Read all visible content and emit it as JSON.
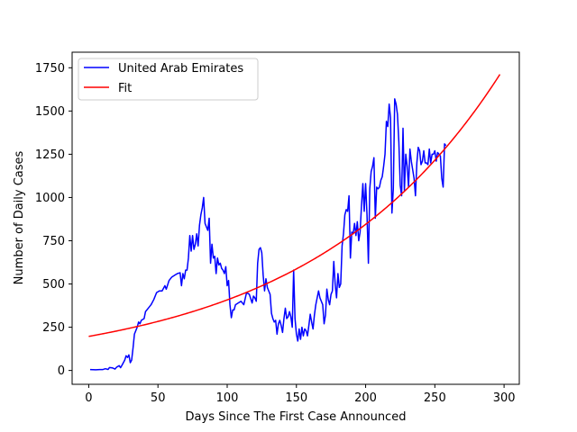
{
  "chart_data": {
    "type": "line",
    "xlabel": "Days Since The First Case Announced",
    "ylabel": "Number of Daily Cases",
    "xlim": [
      -12,
      311
    ],
    "ylim": [
      -80,
      1840
    ],
    "xticks": [
      0,
      50,
      100,
      150,
      200,
      250,
      300
    ],
    "yticks": [
      0,
      250,
      500,
      750,
      1000,
      1250,
      1500,
      1750
    ],
    "grid": false,
    "legend_position": "top-left",
    "series": [
      {
        "name": "United Arab Emirates",
        "color": "#0000ff",
        "points": [
          [
            1,
            5
          ],
          [
            5,
            4
          ],
          [
            8,
            5
          ],
          [
            10,
            5
          ],
          [
            12,
            10
          ],
          [
            14,
            6
          ],
          [
            15,
            17
          ],
          [
            17,
            15
          ],
          [
            19,
            8
          ],
          [
            20,
            18
          ],
          [
            22,
            28
          ],
          [
            23,
            16
          ],
          [
            24,
            30
          ],
          [
            26,
            60
          ],
          [
            27,
            85
          ],
          [
            28,
            75
          ],
          [
            29,
            90
          ],
          [
            30,
            45
          ],
          [
            31,
            60
          ],
          [
            32,
            130
          ],
          [
            33,
            210
          ],
          [
            35,
            250
          ],
          [
            36,
            280
          ],
          [
            37,
            270
          ],
          [
            38,
            290
          ],
          [
            40,
            300
          ],
          [
            41,
            340
          ],
          [
            43,
            360
          ],
          [
            45,
            380
          ],
          [
            47,
            410
          ],
          [
            49,
            450
          ],
          [
            51,
            460
          ],
          [
            53,
            460
          ],
          [
            55,
            490
          ],
          [
            56,
            470
          ],
          [
            58,
            520
          ],
          [
            60,
            540
          ],
          [
            62,
            550
          ],
          [
            64,
            560
          ],
          [
            66,
            565
          ],
          [
            67,
            490
          ],
          [
            68,
            560
          ],
          [
            69,
            530
          ],
          [
            70,
            580
          ],
          [
            71,
            580
          ],
          [
            72,
            650
          ],
          [
            73,
            780
          ],
          [
            74,
            690
          ],
          [
            75,
            780
          ],
          [
            76,
            700
          ],
          [
            77,
            730
          ],
          [
            78,
            790
          ],
          [
            79,
            720
          ],
          [
            80,
            840
          ],
          [
            81,
            900
          ],
          [
            82,
            940
          ],
          [
            83,
            1000
          ],
          [
            84,
            850
          ],
          [
            85,
            830
          ],
          [
            86,
            810
          ],
          [
            87,
            880
          ],
          [
            88,
            620
          ],
          [
            89,
            730
          ],
          [
            90,
            650
          ],
          [
            91,
            660
          ],
          [
            92,
            560
          ],
          [
            93,
            650
          ],
          [
            94,
            610
          ],
          [
            95,
            620
          ],
          [
            96,
            590
          ],
          [
            97,
            580
          ],
          [
            98,
            560
          ],
          [
            99,
            600
          ],
          [
            100,
            490
          ],
          [
            101,
            520
          ],
          [
            102,
            380
          ],
          [
            103,
            305
          ],
          [
            104,
            350
          ],
          [
            105,
            350
          ],
          [
            106,
            380
          ],
          [
            108,
            390
          ],
          [
            110,
            400
          ],
          [
            112,
            380
          ],
          [
            114,
            450
          ],
          [
            116,
            440
          ],
          [
            118,
            390
          ],
          [
            119,
            430
          ],
          [
            120,
            420
          ],
          [
            121,
            400
          ],
          [
            122,
            620
          ],
          [
            123,
            700
          ],
          [
            124,
            710
          ],
          [
            125,
            680
          ],
          [
            126,
            550
          ],
          [
            127,
            460
          ],
          [
            128,
            530
          ],
          [
            129,
            480
          ],
          [
            130,
            460
          ],
          [
            131,
            440
          ],
          [
            132,
            330
          ],
          [
            133,
            300
          ],
          [
            134,
            280
          ],
          [
            135,
            290
          ],
          [
            136,
            210
          ],
          [
            137,
            270
          ],
          [
            138,
            290
          ],
          [
            139,
            260
          ],
          [
            140,
            220
          ],
          [
            141,
            300
          ],
          [
            142,
            360
          ],
          [
            143,
            300
          ],
          [
            144,
            310
          ],
          [
            145,
            340
          ],
          [
            146,
            310
          ],
          [
            147,
            250
          ],
          [
            148,
            580
          ],
          [
            149,
            300
          ],
          [
            150,
            210
          ],
          [
            151,
            170
          ],
          [
            152,
            240
          ],
          [
            153,
            180
          ],
          [
            154,
            250
          ],
          [
            155,
            200
          ],
          [
            156,
            240
          ],
          [
            157,
            230
          ],
          [
            158,
            200
          ],
          [
            159,
            260
          ],
          [
            160,
            325
          ],
          [
            161,
            280
          ],
          [
            162,
            240
          ],
          [
            163,
            320
          ],
          [
            164,
            380
          ],
          [
            165,
            420
          ],
          [
            166,
            460
          ],
          [
            167,
            420
          ],
          [
            168,
            400
          ],
          [
            169,
            380
          ],
          [
            170,
            270
          ],
          [
            171,
            320
          ],
          [
            172,
            470
          ],
          [
            173,
            410
          ],
          [
            174,
            380
          ],
          [
            175,
            440
          ],
          [
            176,
            460
          ],
          [
            177,
            630
          ],
          [
            178,
            500
          ],
          [
            179,
            420
          ],
          [
            180,
            560
          ],
          [
            181,
            480
          ],
          [
            182,
            500
          ],
          [
            183,
            720
          ],
          [
            184,
            790
          ],
          [
            185,
            900
          ],
          [
            186,
            930
          ],
          [
            187,
            920
          ],
          [
            188,
            1010
          ],
          [
            189,
            650
          ],
          [
            190,
            800
          ],
          [
            191,
            790
          ],
          [
            192,
            850
          ],
          [
            193,
            780
          ],
          [
            194,
            860
          ],
          [
            195,
            750
          ],
          [
            196,
            800
          ],
          [
            197,
            950
          ],
          [
            198,
            1080
          ],
          [
            199,
            920
          ],
          [
            200,
            1080
          ],
          [
            201,
            900
          ],
          [
            202,
            620
          ],
          [
            203,
            1050
          ],
          [
            204,
            1150
          ],
          [
            205,
            1180
          ],
          [
            206,
            1230
          ],
          [
            207,
            880
          ],
          [
            208,
            1060
          ],
          [
            209,
            1050
          ],
          [
            210,
            1060
          ],
          [
            211,
            1100
          ],
          [
            212,
            1120
          ],
          [
            213,
            1180
          ],
          [
            214,
            1250
          ],
          [
            215,
            1440
          ],
          [
            216,
            1410
          ],
          [
            217,
            1540
          ],
          [
            218,
            1460
          ],
          [
            219,
            910
          ],
          [
            220,
            1050
          ],
          [
            221,
            1570
          ],
          [
            222,
            1540
          ],
          [
            223,
            1480
          ],
          [
            224,
            1320
          ],
          [
            225,
            1070
          ],
          [
            226,
            1010
          ],
          [
            227,
            1400
          ],
          [
            228,
            1040
          ],
          [
            229,
            1250
          ],
          [
            230,
            1180
          ],
          [
            231,
            1060
          ],
          [
            232,
            1280
          ],
          [
            233,
            1210
          ],
          [
            234,
            1160
          ],
          [
            235,
            1110
          ],
          [
            236,
            1010
          ],
          [
            237,
            1200
          ],
          [
            238,
            1290
          ],
          [
            239,
            1270
          ],
          [
            240,
            1190
          ],
          [
            241,
            1210
          ],
          [
            242,
            1270
          ],
          [
            243,
            1200
          ],
          [
            244,
            1200
          ],
          [
            245,
            1190
          ],
          [
            246,
            1280
          ],
          [
            247,
            1200
          ],
          [
            248,
            1250
          ],
          [
            249,
            1250
          ],
          [
            250,
            1270
          ],
          [
            251,
            1210
          ],
          [
            252,
            1260
          ],
          [
            253,
            1250
          ],
          [
            254,
            1240
          ],
          [
            255,
            1110
          ],
          [
            256,
            1060
          ],
          [
            257,
            1310
          ],
          [
            258,
            1300
          ]
        ]
      },
      {
        "name": "Fit",
        "color": "#ff0000",
        "fit": {
          "model": "exponential",
          "a": 197,
          "b": 0.00728,
          "x_start": 0,
          "x_end": 297
        }
      }
    ]
  }
}
